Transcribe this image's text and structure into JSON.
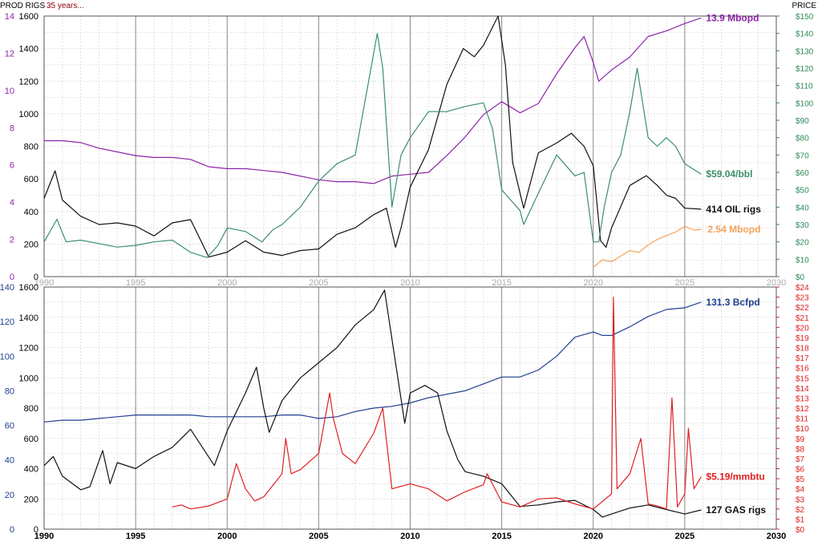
{
  "header": {
    "left_label": "PROD RIGS",
    "span_label": "35 years...",
    "right_label": "PRICE"
  },
  "colors": {
    "purple": "#8e24aa",
    "green": "#3a8f6a",
    "black": "#111111",
    "orange": "#f5a35c",
    "blue": "#1f3f8f",
    "red": "#e02020",
    "grid_major": "#888888",
    "grid_minor": "#e0e0e0"
  },
  "chart_data": [
    {
      "type": "line",
      "panel": "oil",
      "x_ticks": [
        "1990",
        "1995",
        "2000",
        "2005",
        "2010",
        "2015",
        "2020",
        "2025",
        "2030"
      ],
      "xlim": [
        1990,
        2030
      ],
      "y_rigs_ticks": [
        "0",
        "200",
        "400",
        "600",
        "800",
        "1000",
        "1200",
        "1400",
        "1600"
      ],
      "y_rigs_lim": [
        0,
        1600
      ],
      "y_prod_ticks": [
        "0",
        "2",
        "4",
        "6",
        "8",
        "10",
        "12",
        "14"
      ],
      "y_prod_lim": [
        0,
        14
      ],
      "y_price_ticks": [
        "$0",
        "$10",
        "$20",
        "$30",
        "$40",
        "$50",
        "$60",
        "$70",
        "$80",
        "$90",
        "$100",
        "$110",
        "$120",
        "$130",
        "$140",
        "$150"
      ],
      "y_price_lim": [
        0,
        150
      ],
      "series": [
        {
          "name": "Mbopd",
          "axis": "prod",
          "color_key": "purple",
          "end_label": "13.9 Mbopd",
          "x": [
            1990,
            1991,
            1992,
            1993,
            1994,
            1995,
            1996,
            1997,
            1998,
            1999,
            2000,
            2001,
            2002,
            2003,
            2004,
            2005,
            2006,
            2007,
            2008,
            2009,
            2010,
            2011,
            2012,
            2013,
            2014,
            2015,
            2016,
            2017,
            2018,
            2019,
            2019.5,
            2020,
            2020.3,
            2021,
            2022,
            2023,
            2024,
            2025,
            2025.9
          ],
          "y": [
            7.3,
            7.3,
            7.2,
            6.9,
            6.7,
            6.5,
            6.4,
            6.4,
            6.3,
            5.9,
            5.8,
            5.8,
            5.7,
            5.6,
            5.4,
            5.2,
            5.1,
            5.1,
            5.0,
            5.4,
            5.5,
            5.6,
            6.5,
            7.5,
            8.7,
            9.4,
            8.8,
            9.3,
            10.9,
            12.3,
            12.9,
            11.5,
            10.5,
            11.1,
            11.8,
            12.9,
            13.2,
            13.6,
            13.9
          ]
        },
        {
          "name": "OIL rigs",
          "axis": "rigs",
          "color_key": "black",
          "end_label": "414 OIL rigs",
          "x": [
            1990,
            1990.6,
            1991,
            1992,
            1993,
            1994,
            1995,
            1996,
            1997,
            1998,
            1999,
            2000,
            2001,
            2002,
            2003,
            2004,
            2005,
            2006,
            2007,
            2008,
            2008.7,
            2009.2,
            2009.5,
            2010,
            2011,
            2012,
            2012.9,
            2013.5,
            2014,
            2014.8,
            2015.2,
            2015.6,
            2016.2,
            2017,
            2018,
            2018.8,
            2019.5,
            2020,
            2020.4,
            2020.7,
            2021,
            2022,
            2022.9,
            2023.5,
            2024,
            2024.5,
            2025,
            2025.9
          ],
          "y": [
            480,
            650,
            470,
            370,
            320,
            330,
            310,
            250,
            330,
            350,
            120,
            150,
            220,
            150,
            130,
            160,
            170,
            260,
            300,
            380,
            420,
            180,
            300,
            550,
            780,
            1180,
            1400,
            1350,
            1420,
            1600,
            1300,
            700,
            420,
            760,
            820,
            880,
            800,
            680,
            220,
            180,
            300,
            560,
            620,
            560,
            500,
            480,
            420,
            414
          ]
        },
        {
          "name": "$/bbl",
          "axis": "price",
          "color_key": "green",
          "end_label": "$59.04/bbl",
          "x": [
            1990,
            1990.7,
            1991.2,
            1992,
            1993,
            1994,
            1995,
            1996,
            1997,
            1998,
            1998.9,
            1999.5,
            2000,
            2001,
            2001.9,
            2002.5,
            2003,
            2004,
            2005,
            2006,
            2007,
            2008.2,
            2008.5,
            2009,
            2009.5,
            2010,
            2011,
            2012,
            2013,
            2014,
            2014.5,
            2015,
            2016,
            2016.2,
            2017,
            2018,
            2019,
            2019.5,
            2020,
            2020.3,
            2020.6,
            2021,
            2021.5,
            2022,
            2022.4,
            2023,
            2023.5,
            2024,
            2024.5,
            2025,
            2025.9
          ],
          "y": [
            20,
            33,
            20,
            21,
            19,
            17,
            18,
            20,
            21,
            14,
            11,
            18,
            28,
            26,
            20,
            27,
            30,
            40,
            55,
            65,
            70,
            140,
            120,
            40,
            70,
            80,
            95,
            95,
            98,
            100,
            85,
            50,
            38,
            30,
            48,
            70,
            58,
            60,
            20,
            20,
            40,
            60,
            70,
            95,
            120,
            80,
            75,
            80,
            75,
            65,
            59
          ]
        },
        {
          "name": "Mbopd (orange)",
          "axis": "prod",
          "color_key": "orange",
          "end_label": "2.54 Mbopd",
          "x": [
            2020,
            2020.5,
            2021,
            2021.5,
            2022,
            2022.5,
            2023,
            2023.5,
            2024,
            2024.5,
            2025,
            2025.5,
            2025.9
          ],
          "y": [
            0.5,
            0.9,
            0.8,
            1.1,
            1.4,
            1.3,
            1.7,
            2.0,
            2.2,
            2.4,
            2.7,
            2.5,
            2.54
          ]
        }
      ]
    },
    {
      "type": "line",
      "panel": "gas",
      "x_ticks": [
        "1990",
        "1995",
        "2000",
        "2005",
        "2010",
        "2015",
        "2020",
        "2025",
        "2030"
      ],
      "xlim": [
        1990,
        2030
      ],
      "y_rigs_ticks": [
        "0",
        "200",
        "400",
        "600",
        "800",
        "1000",
        "1200",
        "1400",
        "1600"
      ],
      "y_rigs_lim": [
        0,
        1600
      ],
      "y_prod_ticks": [
        "0",
        "20",
        "40",
        "60",
        "80",
        "100",
        "120",
        "140"
      ],
      "y_prod_lim": [
        0,
        140
      ],
      "y_price_ticks": [
        "$0",
        "$1",
        "$2",
        "$3",
        "$4",
        "$5",
        "$6",
        "$7",
        "$8",
        "$9",
        "$10",
        "$11",
        "$12",
        "$13",
        "$14",
        "$15",
        "$16",
        "$17",
        "$18",
        "$19",
        "$20",
        "$21",
        "$22",
        "$23",
        "$24"
      ],
      "y_price_lim": [
        0,
        24
      ],
      "series": [
        {
          "name": "Bcfpd",
          "axis": "prod",
          "color_key": "blue",
          "end_label": "131.3 Bcfpd",
          "x": [
            1990,
            1991,
            1992,
            1993,
            1994,
            1995,
            1996,
            1997,
            1998,
            1999,
            2000,
            2001,
            2002,
            2003,
            2004,
            2005,
            2006,
            2007,
            2008,
            2009,
            2010,
            2011,
            2012,
            2013,
            2014,
            2015,
            2016,
            2017,
            2018,
            2019,
            2020,
            2020.5,
            2021,
            2022,
            2023,
            2024,
            2025,
            2025.9
          ],
          "y": [
            62,
            63,
            63,
            64,
            65,
            66,
            66,
            66,
            66,
            65,
            65,
            65,
            65,
            66,
            66,
            64,
            65,
            68,
            70,
            71,
            73,
            76,
            78,
            80,
            84,
            88,
            88,
            92,
            100,
            111,
            114,
            112,
            112,
            117,
            123,
            127,
            128,
            131.3
          ]
        },
        {
          "name": "GAS rigs",
          "axis": "rigs",
          "color_key": "black",
          "end_label": "127 GAS rigs",
          "x": [
            1990,
            1990.5,
            1991,
            1992,
            1992.5,
            1993.2,
            1993.6,
            1994,
            1995,
            1996,
            1997,
            1998,
            1999.3,
            2000,
            2001,
            2001.6,
            2002,
            2002.3,
            2003,
            2004,
            2005,
            2006,
            2007,
            2008,
            2008.6,
            2009.2,
            2009.7,
            2010,
            2010.8,
            2011.5,
            2012,
            2012.6,
            2013,
            2014,
            2015,
            2016,
            2017,
            2018,
            2019,
            2020,
            2020.5,
            2021,
            2022,
            2023,
            2024,
            2025,
            2025.9
          ],
          "y": [
            420,
            480,
            350,
            260,
            280,
            520,
            300,
            440,
            400,
            480,
            540,
            660,
            420,
            650,
            900,
            1070,
            800,
            640,
            850,
            1000,
            1100,
            1200,
            1350,
            1450,
            1580,
            1100,
            700,
            900,
            950,
            900,
            650,
            460,
            380,
            350,
            300,
            150,
            160,
            180,
            190,
            130,
            80,
            100,
            140,
            160,
            130,
            100,
            127
          ]
        },
        {
          "name": "$/mmbtu",
          "axis": "price",
          "color_key": "red",
          "end_label": "$5.19/mmbtu",
          "x": [
            1997,
            1997.5,
            1998,
            1999,
            2000,
            2000.5,
            2001,
            2001.5,
            2002,
            2003,
            2003.2,
            2003.5,
            2004,
            2005,
            2005.6,
            2005.8,
            2006.3,
            2007,
            2008,
            2008.5,
            2009,
            2010,
            2011,
            2012,
            2013,
            2014,
            2014.2,
            2015,
            2016,
            2017,
            2018,
            2019,
            2020,
            2021,
            2021.1,
            2021.3,
            2022,
            2022.6,
            2023,
            2023.5,
            2024,
            2024.3,
            2024.6,
            2025,
            2025.2,
            2025.5,
            2025.9
          ],
          "y": [
            2.2,
            2.4,
            2.0,
            2.3,
            3.0,
            6.5,
            4.0,
            2.8,
            3.2,
            5.5,
            9.0,
            5.5,
            5.9,
            7.5,
            13.5,
            11.0,
            7.5,
            6.5,
            9.5,
            12.0,
            4.0,
            4.5,
            4.0,
            2.8,
            3.7,
            4.4,
            5.5,
            2.7,
            2.2,
            3.0,
            3.1,
            2.5,
            2.0,
            3.5,
            23.0,
            4.0,
            5.5,
            9.0,
            2.5,
            2.3,
            2.0,
            13.0,
            2.2,
            3.5,
            10.0,
            4.0,
            5.19
          ]
        }
      ]
    }
  ]
}
